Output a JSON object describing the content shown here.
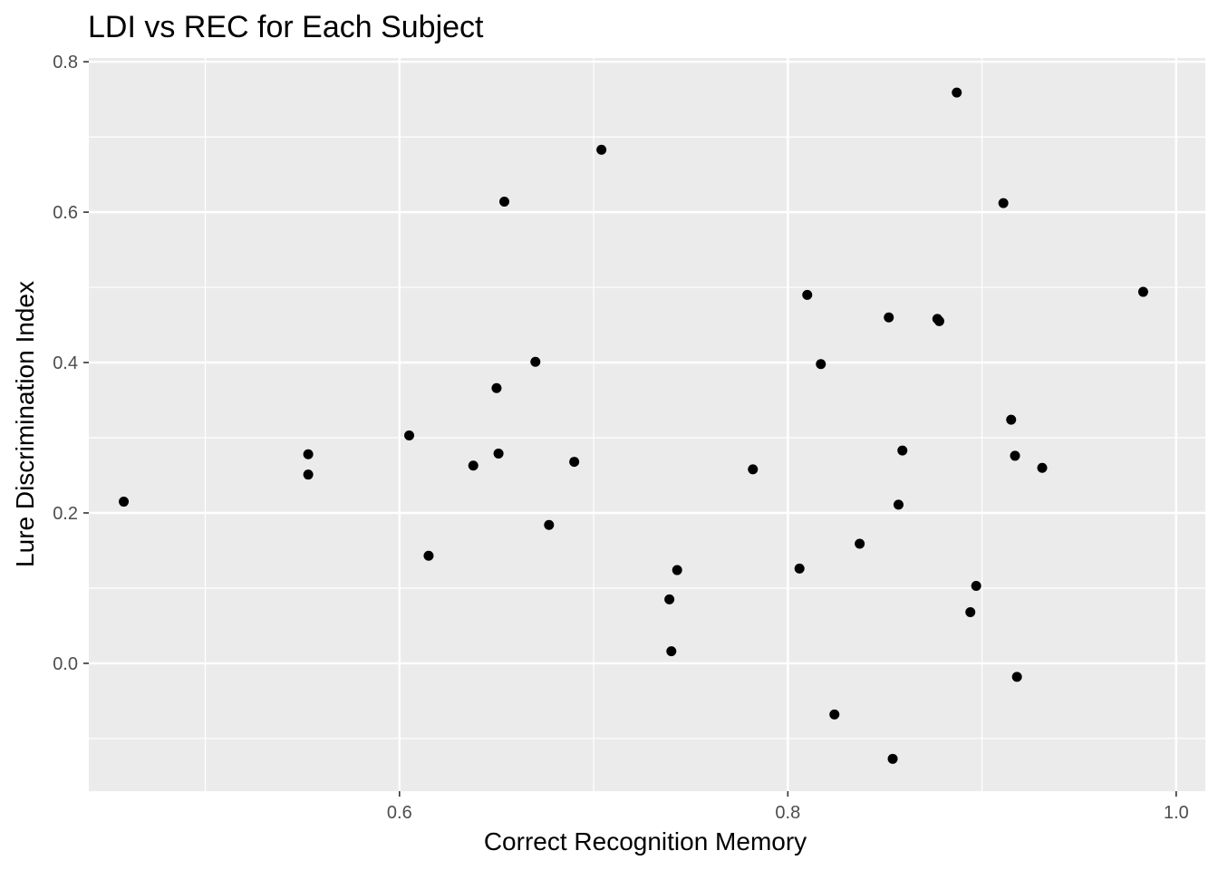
{
  "chart_data": {
    "type": "scatter",
    "title": "LDI vs REC for Each Subject",
    "xlabel": "Correct Recognition Memory",
    "ylabel": "Lure Discrimination Index",
    "xlim": [
      0.44,
      1.015
    ],
    "ylim": [
      -0.17,
      0.805
    ],
    "x_ticks": [
      0.6,
      0.8,
      1.0
    ],
    "x_tick_labels": [
      "0.6",
      "0.8",
      "1.0"
    ],
    "y_ticks": [
      0.0,
      0.2,
      0.4,
      0.6,
      0.8
    ],
    "y_tick_labels": [
      "0.0",
      "0.2",
      "0.4",
      "0.6",
      "0.8"
    ],
    "grid": true,
    "background": "#ebebeb",
    "grid_color": "#ffffff",
    "point_color": "#000000",
    "points": [
      {
        "x": 0.458,
        "y": 0.215
      },
      {
        "x": 0.553,
        "y": 0.278
      },
      {
        "x": 0.553,
        "y": 0.251
      },
      {
        "x": 0.605,
        "y": 0.303
      },
      {
        "x": 0.615,
        "y": 0.143
      },
      {
        "x": 0.638,
        "y": 0.263
      },
      {
        "x": 0.65,
        "y": 0.366
      },
      {
        "x": 0.651,
        "y": 0.279
      },
      {
        "x": 0.654,
        "y": 0.614
      },
      {
        "x": 0.67,
        "y": 0.401
      },
      {
        "x": 0.677,
        "y": 0.184
      },
      {
        "x": 0.69,
        "y": 0.268
      },
      {
        "x": 0.704,
        "y": 0.683
      },
      {
        "x": 0.739,
        "y": 0.085
      },
      {
        "x": 0.74,
        "y": 0.016
      },
      {
        "x": 0.743,
        "y": 0.124
      },
      {
        "x": 0.782,
        "y": 0.258
      },
      {
        "x": 0.806,
        "y": 0.126
      },
      {
        "x": 0.81,
        "y": 0.49
      },
      {
        "x": 0.817,
        "y": 0.398
      },
      {
        "x": 0.824,
        "y": -0.068
      },
      {
        "x": 0.837,
        "y": 0.159
      },
      {
        "x": 0.852,
        "y": 0.46
      },
      {
        "x": 0.854,
        "y": -0.127
      },
      {
        "x": 0.857,
        "y": 0.211
      },
      {
        "x": 0.859,
        "y": 0.283
      },
      {
        "x": 0.877,
        "y": 0.458
      },
      {
        "x": 0.878,
        "y": 0.455
      },
      {
        "x": 0.887,
        "y": 0.759
      },
      {
        "x": 0.894,
        "y": 0.068
      },
      {
        "x": 0.897,
        "y": 0.103
      },
      {
        "x": 0.911,
        "y": 0.612
      },
      {
        "x": 0.915,
        "y": 0.324
      },
      {
        "x": 0.917,
        "y": 0.276
      },
      {
        "x": 0.918,
        "y": -0.018
      },
      {
        "x": 0.931,
        "y": 0.26
      },
      {
        "x": 0.983,
        "y": 0.494
      }
    ]
  }
}
